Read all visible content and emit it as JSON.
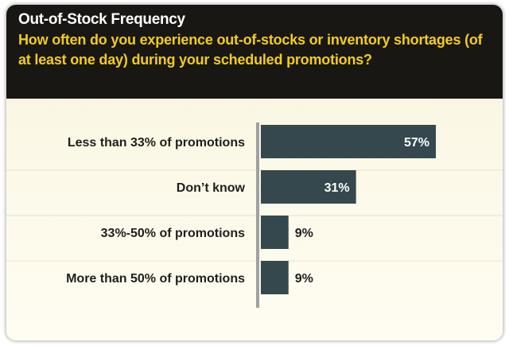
{
  "header": {
    "title": "Out-of-Stock Frequency",
    "question": "How often do you experience out-of-stocks or inventory shortages (of at least one day) during your scheduled promotions?"
  },
  "colors": {
    "header_bg": "#191713",
    "title": "#ffffff",
    "question": "#f3cc1e",
    "bar": "#34484e",
    "axis": "#a0a0a0",
    "value_inside": "#ffffff",
    "value_outside": "#1e1e1e"
  },
  "chart_data": {
    "type": "bar",
    "orientation": "horizontal",
    "categories": [
      "Less than 33% of promotions",
      "Don’t know",
      "33%-50% of promotions",
      "More than 50% of promotions"
    ],
    "values": [
      57,
      31,
      9,
      9
    ],
    "value_labels": [
      "57%",
      "31%",
      "9%",
      "9%"
    ],
    "title": "Out-of-Stock Frequency",
    "xlim": [
      0,
      80
    ],
    "grid": false,
    "legend": "none"
  }
}
